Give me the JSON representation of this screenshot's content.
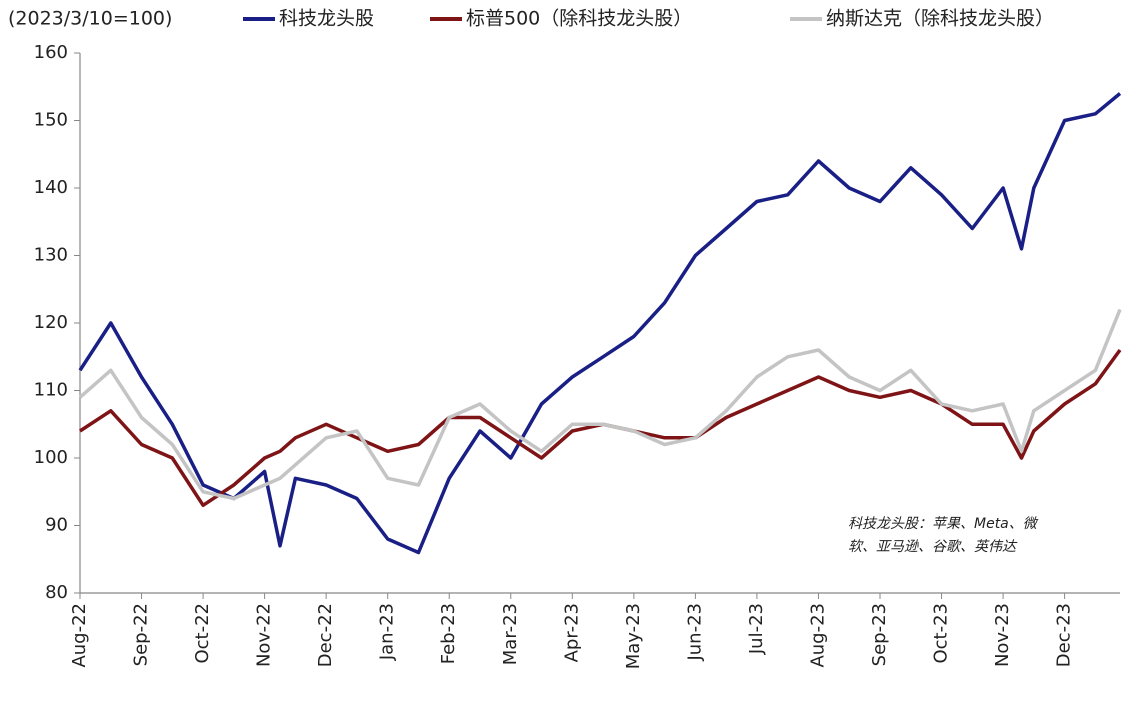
{
  "chart_data": {
    "type": "line",
    "subtitle": "(2023/3/10=100)",
    "annotation": [
      "科技龙头股：苹果、Meta、微",
      "软、亚马逊、谷歌、英伟达"
    ],
    "x": [
      0,
      0.5,
      1.0,
      1.5,
      2.0,
      2.5,
      3.0,
      3.25,
      3.5,
      4.0,
      4.5,
      5.0,
      5.5,
      6.0,
      6.5,
      7.0,
      7.5,
      8.0,
      8.5,
      9.0,
      9.5,
      10.0,
      10.5,
      11.0,
      11.5,
      12.0,
      12.5,
      13.0,
      13.5,
      14.0,
      14.5,
      15.0,
      15.3,
      15.5,
      16.0,
      16.5,
      16.9
    ],
    "xlim": [
      0,
      16.9
    ],
    "xticks": [
      {
        "value": 0,
        "label": "Aug-22"
      },
      {
        "value": 1,
        "label": "Sep-22"
      },
      {
        "value": 2,
        "label": "Oct-22"
      },
      {
        "value": 3,
        "label": "Nov-22"
      },
      {
        "value": 4,
        "label": "Dec-22"
      },
      {
        "value": 5,
        "label": "Jan-23"
      },
      {
        "value": 6,
        "label": "Feb-23"
      },
      {
        "value": 7,
        "label": "Mar-23"
      },
      {
        "value": 8,
        "label": "Apr-23"
      },
      {
        "value": 9,
        "label": "May-23"
      },
      {
        "value": 10,
        "label": "Jun-23"
      },
      {
        "value": 11,
        "label": "Jul-23"
      },
      {
        "value": 12,
        "label": "Aug-23"
      },
      {
        "value": 13,
        "label": "Sep-23"
      },
      {
        "value": 14,
        "label": "Oct-23"
      },
      {
        "value": 15,
        "label": "Nov-23"
      },
      {
        "value": 16,
        "label": "Dec-23"
      }
    ],
    "ylim": [
      80,
      160
    ],
    "yticks": [
      80,
      90,
      100,
      110,
      120,
      130,
      140,
      150,
      160
    ],
    "grid": false,
    "series": [
      {
        "name": "科技龙头股",
        "color": "#1a1f86",
        "values": [
          113,
          120,
          112,
          105,
          96,
          94,
          98,
          87,
          97,
          96,
          94,
          88,
          86,
          97,
          104,
          100,
          108,
          112,
          115,
          118,
          123,
          130,
          134,
          138,
          139,
          144,
          140,
          138,
          143,
          139,
          134,
          140,
          131,
          140,
          150,
          151,
          154
        ]
      },
      {
        "name": "标普500（除科技龙头股）",
        "color": "#7f1416",
        "values": [
          104,
          107,
          102,
          100,
          93,
          96,
          100,
          101,
          103,
          105,
          103,
          101,
          102,
          106,
          106,
          103,
          100,
          104,
          105,
          104,
          103,
          103,
          106,
          108,
          110,
          112,
          110,
          109,
          110,
          108,
          105,
          105,
          100,
          104,
          108,
          111,
          116
        ]
      },
      {
        "name": "纳斯达克（除科技龙头股）",
        "color": "#c4c4c4",
        "values": [
          109,
          113,
          106,
          102,
          95,
          94,
          96,
          97,
          99,
          103,
          104,
          97,
          96,
          106,
          108,
          104,
          101,
          105,
          105,
          104,
          102,
          103,
          107,
          112,
          115,
          116,
          112,
          110,
          113,
          108,
          107,
          108,
          101,
          107,
          110,
          113,
          122
        ]
      }
    ]
  }
}
